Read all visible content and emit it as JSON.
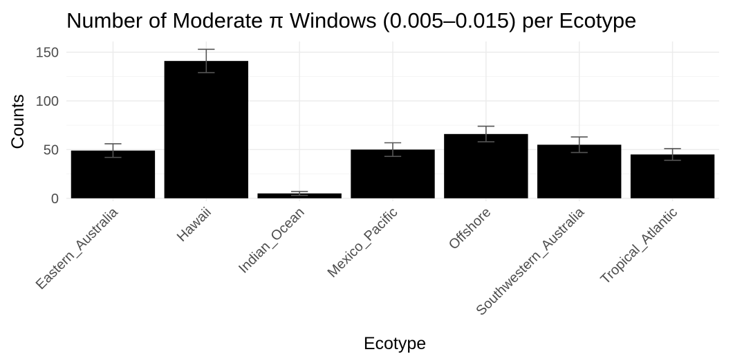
{
  "chart_data": {
    "type": "bar",
    "title": "Number of Moderate π Windows (0.005–0.015) per Ecotype",
    "xlabel": "Ecotype",
    "ylabel": "Counts",
    "categories": [
      "Eastern_Australia",
      "Hawaii",
      "Indian_Ocean",
      "Mexico_Pacific",
      "Offshore",
      "Southwestern_Australia",
      "Tropical_Atlantic"
    ],
    "values": [
      49,
      141,
      5,
      50,
      66,
      55,
      45
    ],
    "error_low": [
      42,
      129,
      3,
      43,
      58,
      47,
      39
    ],
    "error_high": [
      56,
      153,
      7,
      57,
      74,
      63,
      51
    ],
    "yticks": [
      0,
      50,
      100,
      150
    ],
    "ylim": [
      -3,
      161
    ],
    "grid": true,
    "bar_color": "#000000",
    "error_color": "#555555"
  }
}
